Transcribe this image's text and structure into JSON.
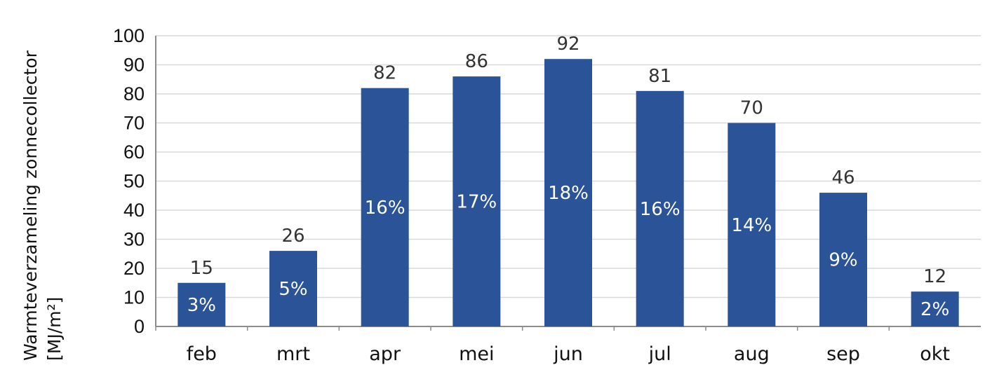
{
  "chart_data": {
    "type": "bar",
    "title": "",
    "xlabel": "",
    "ylabel": "Warmteverzameling zonnecollector",
    "ylabel_unit": "[MJ/m²]",
    "categories": [
      "feb",
      "mrt",
      "apr",
      "mei",
      "jun",
      "jul",
      "aug",
      "sep",
      "okt"
    ],
    "values": [
      15,
      26,
      82,
      86,
      92,
      81,
      70,
      46,
      12
    ],
    "value_labels": [
      "15",
      "26",
      "82",
      "86",
      "92",
      "81",
      "70",
      "46",
      "12"
    ],
    "percent_labels": [
      "3%",
      "5%",
      "16%",
      "17%",
      "18%",
      "16%",
      "14%",
      "9%",
      "2%"
    ],
    "ylim": [
      0,
      100
    ],
    "yticks": [
      "0",
      "10",
      "20",
      "30",
      "40",
      "50",
      "60",
      "70",
      "80",
      "90",
      "100"
    ],
    "grid": true,
    "legend": "none",
    "colors": {
      "bar": "#2a5398",
      "grid": "#d9d9d9",
      "axis": "#8c8c8c"
    }
  }
}
